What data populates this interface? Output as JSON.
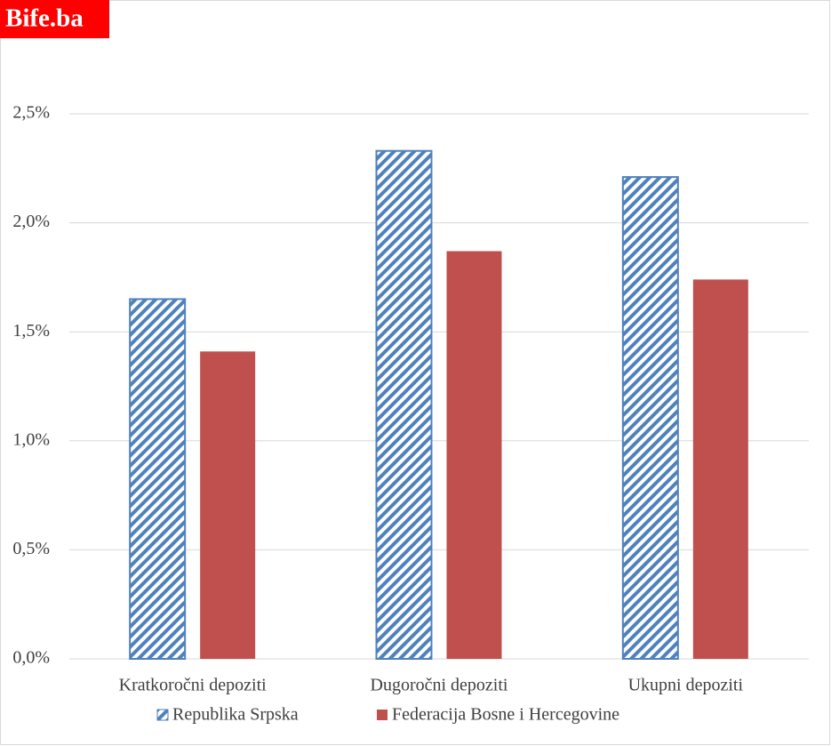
{
  "logo": "Bife.ba",
  "chart_data": {
    "type": "bar",
    "categories": [
      "Kratkoročni depoziti",
      "Dugoročni depoziti",
      "Ukupni depoziti"
    ],
    "series": [
      {
        "name": "Republika Srpska",
        "color": "#4f81bd",
        "hatch": true,
        "values": [
          1.65,
          2.33,
          2.21
        ]
      },
      {
        "name": "Federacija Bosne i Hercegovine",
        "color": "#c0504d",
        "hatch": false,
        "values": [
          1.41,
          1.87,
          1.74
        ]
      }
    ],
    "ylim": [
      0,
      2.5
    ],
    "yticks": [
      {
        "value": 0,
        "label": "0,0%"
      },
      {
        "value": 0.5,
        "label": "0,5%"
      },
      {
        "value": 1,
        "label": "1,0%"
      },
      {
        "value": 1.5,
        "label": "1,5%"
      },
      {
        "value": 2,
        "label": "2,0%"
      },
      {
        "value": 2.5,
        "label": "2,5%"
      }
    ],
    "grid": true,
    "legend": "bottom"
  }
}
